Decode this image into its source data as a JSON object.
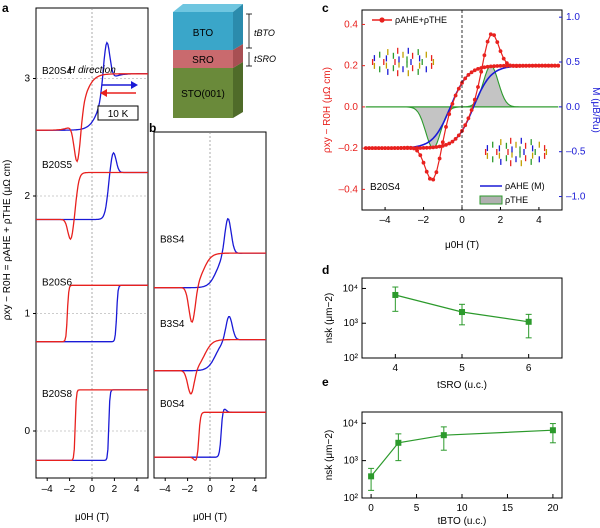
{
  "figure": {
    "panel_labels": {
      "a": "a",
      "b": "b",
      "c": "c",
      "d": "d",
      "e": "e"
    }
  },
  "colors": {
    "red": "#e8211e",
    "blue": "#1a1ad6",
    "green": "#2c9a2c",
    "gray": "#b0b0b0",
    "bto": "#3aa6c9",
    "sro": "#c96a6e",
    "sto": "#6a8a3a",
    "axis": "#000000"
  },
  "panel_a": {
    "ylabel": "ρxy − R0H = ρAHE + ρTHE (μΩ cm)",
    "xlabel": "μ0H (T)",
    "legend_arrow_label": "H direction",
    "temperature_box": "10 K",
    "stack_layers": {
      "bto": "BTO",
      "sro": "SRO",
      "sto": "STO(001)"
    },
    "thickness_labels": {
      "t_bto": "tBTO",
      "t_sro": "tSRO"
    }
  },
  "panel_c": {
    "xlabel": "μ0H (T)",
    "ylabel_left": "ρxy − R0H (μΩ cm)",
    "ylabel_right": "M (μB/Ru)",
    "legend": {
      "sum": "ρAHE+ρTHE",
      "ahe": "ρAHE (M)",
      "the": "ρTHE"
    },
    "sample": "B20S4"
  },
  "panel_d": {
    "xlabel": "tSRO (u.c.)",
    "ylabel": "nsk (μm−2)"
  },
  "panel_e": {
    "xlabel": "tBTO (u.c.)",
    "ylabel": "nsk (μm−2)"
  },
  "chart_data": [
    {
      "id": "a",
      "type": "line",
      "title": "",
      "xlabel": "μ0H (T)",
      "ylabel": "ρxy − R0H = ρAHE + ρTHE (μΩ cm)",
      "xlim": [
        -5,
        5
      ],
      "ylim": [
        -0.4,
        3.6
      ],
      "xticks": [
        -4,
        -2,
        0,
        2,
        4
      ],
      "yticks": [
        0,
        1,
        2,
        3
      ],
      "series": [
        {
          "name": "B20S4",
          "offset": 2.8,
          "amp": 0.24,
          "coercive": 0.8,
          "width": 0.9,
          "hump": 0.38,
          "humpPos": 1.3,
          "humpWidth": 0.4
        },
        {
          "name": "B20S5",
          "offset": 2.0,
          "amp": 0.2,
          "coercive": 1.4,
          "width": 0.3,
          "hump": 0.18,
          "humpPos": 1.9,
          "humpWidth": 0.35
        },
        {
          "name": "B20S6",
          "offset": 1.0,
          "amp": 0.24,
          "coercive": 2.2,
          "width": 0.12,
          "hump": 0.0,
          "humpPos": 0,
          "humpWidth": 1
        },
        {
          "name": "B20S8",
          "offset": 0.05,
          "amp": 0.3,
          "coercive": 1.5,
          "width": 0.1,
          "hump": 0.0,
          "humpPos": 0,
          "humpWidth": 1
        }
      ]
    },
    {
      "id": "b",
      "type": "line",
      "title": "",
      "xlabel": "μ0H (T)",
      "ylabel": "",
      "xlim": [
        -5,
        5
      ],
      "ylim": [
        -0.4,
        3.6
      ],
      "xticks": [
        -4,
        -2,
        0,
        2,
        4
      ],
      "yticks": [],
      "series": [
        {
          "name": "B8S4",
          "offset": 2.0,
          "amp": 0.2,
          "coercive": 0.6,
          "width": 0.7,
          "hump": 0.42,
          "humpPos": 1.6,
          "humpWidth": 0.4
        },
        {
          "name": "B3S4",
          "offset": 1.02,
          "amp": 0.18,
          "coercive": 0.5,
          "width": 0.7,
          "hump": 0.28,
          "humpPos": 1.7,
          "humpWidth": 0.4
        },
        {
          "name": "B0S4",
          "offset": 0.1,
          "amp": 0.26,
          "coercive": 1.0,
          "width": 0.15,
          "hump": 0.05,
          "humpPos": 1.2,
          "humpWidth": 0.3
        }
      ]
    },
    {
      "id": "c",
      "type": "line",
      "title": "",
      "xlabel": "μ0H (T)",
      "ylabel": "ρxy − R0H (μΩ cm)",
      "y2label": "M (μB/Ru)",
      "xlim": [
        -5.2,
        5.2
      ],
      "ylim": [
        -0.5,
        0.47
      ],
      "y2lim": [
        -1.15,
        1.08
      ],
      "xticks": [
        -4,
        -2,
        0,
        2,
        4
      ],
      "yticks": [
        -0.4,
        -0.2,
        0.0,
        0.2,
        0.4
      ],
      "y2ticks": [
        -1.0,
        -0.5,
        0.0,
        0.5,
        1.0
      ],
      "series": [
        {
          "name": "ρAHE+ρTHE",
          "color": "red",
          "amp": 0.2,
          "coercive": 0.6,
          "width": 0.9,
          "hump": 0.2,
          "humpPos": 1.5,
          "humpWidth": 0.55
        },
        {
          "name": "ρAHE (M)",
          "color": "blue",
          "amp": 0.2,
          "coercive": 0.6,
          "width": 0.9,
          "hump": 0,
          "humpPos": 0,
          "humpWidth": 1
        },
        {
          "name": "ρTHE",
          "color": "green",
          "amp": 0.0,
          "coercive": 0.6,
          "width": 0.9,
          "hump": 0.2,
          "humpPos": 1.5,
          "humpWidth": 0.55
        }
      ],
      "annotation": "B20S4"
    },
    {
      "id": "d",
      "type": "scatter",
      "title": "",
      "xlabel": "tSRO (u.c.)",
      "ylabel": "nsk (μm−2)",
      "xlim": [
        3.5,
        6.5
      ],
      "ylim_log": [
        100,
        20000
      ],
      "xticks": [
        4,
        5,
        6
      ],
      "yticks_log": [
        100,
        1000,
        10000
      ],
      "ytick_labels": [
        "10²",
        "10³",
        "10⁴"
      ],
      "x": [
        4,
        5,
        6
      ],
      "y": [
        6500,
        2100,
        1100
      ],
      "err_low": [
        2200,
        900,
        380
      ],
      "err_high": [
        11000,
        3500,
        1800
      ]
    },
    {
      "id": "e",
      "type": "scatter",
      "title": "",
      "xlabel": "tBTO (u.c.)",
      "ylabel": "nsk (μm−2)",
      "xlim": [
        -1,
        21
      ],
      "ylim_log": [
        100,
        20000
      ],
      "xticks": [
        0,
        5,
        10,
        15,
        20
      ],
      "yticks_log": [
        100,
        1000,
        10000
      ],
      "ytick_labels": [
        "10²",
        "10³",
        "10⁴"
      ],
      "x": [
        0,
        3,
        8,
        20
      ],
      "y": [
        380,
        3000,
        4800,
        6500
      ],
      "err_low": [
        160,
        1000,
        1900,
        3000
      ],
      "err_high": [
        620,
        5200,
        8000,
        9800
      ]
    }
  ]
}
